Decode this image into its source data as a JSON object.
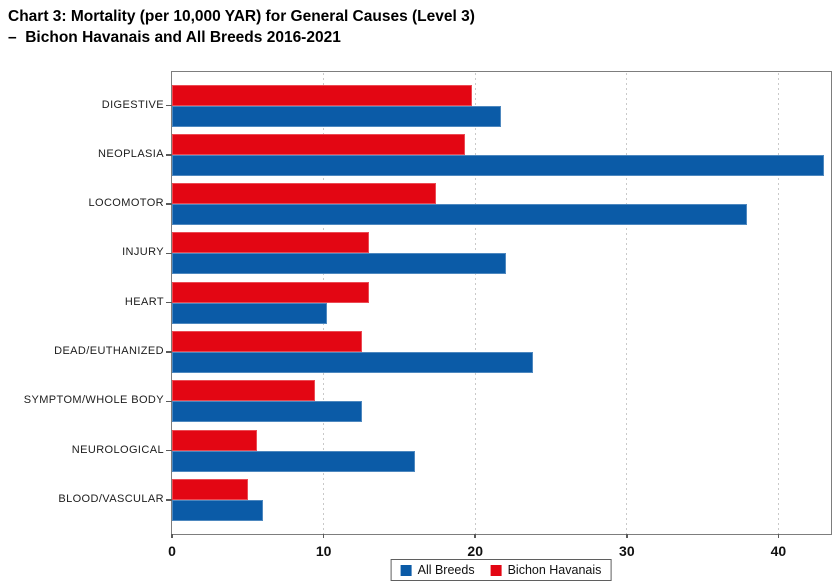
{
  "title": {
    "line1": "Chart 3: Mortality (per 10,000 YAR) for General Causes (Level 3)",
    "line2": "–  Bichon Havanais and All Breeds 2016-2021"
  },
  "chart_data": {
    "type": "bar",
    "orientation": "horizontal",
    "title": "Chart 3: Mortality (per 10,000 YAR) for General Causes (Level 3) – Bichon Havanais and All Breeds 2016-2021",
    "categories": [
      "DIGESTIVE",
      "NEOPLASIA",
      "LOCOMOTOR",
      "INJURY",
      "HEART",
      "DEAD/EUTHANIZED",
      "SYMPTOM/WHOLE BODY",
      "NEUROLOGICAL",
      "BLOOD/VASCULAR"
    ],
    "series": [
      {
        "name": "Bichon Havanais",
        "color": "#e30613",
        "group_position": "top",
        "values": [
          19.8,
          19.3,
          17.4,
          13.0,
          13.0,
          12.5,
          9.4,
          5.6,
          5.0
        ]
      },
      {
        "name": "All Breeds",
        "color": "#0b5ba7",
        "group_position": "bottom",
        "values": [
          21.7,
          43.0,
          37.9,
          22.0,
          10.2,
          23.8,
          12.5,
          16.0,
          6.0
        ]
      }
    ],
    "xlabel": "",
    "ylabel": "",
    "x_ticks": [
      0,
      10,
      20,
      30,
      40
    ],
    "xlim": [
      0,
      43.4
    ],
    "grid": "vertical-dotted",
    "legend": {
      "position": "bottom-center",
      "entries": [
        {
          "label": "All Breeds",
          "color": "#0b5ba7"
        },
        {
          "label": "Bichon Havanais",
          "color": "#e30613"
        }
      ]
    }
  }
}
